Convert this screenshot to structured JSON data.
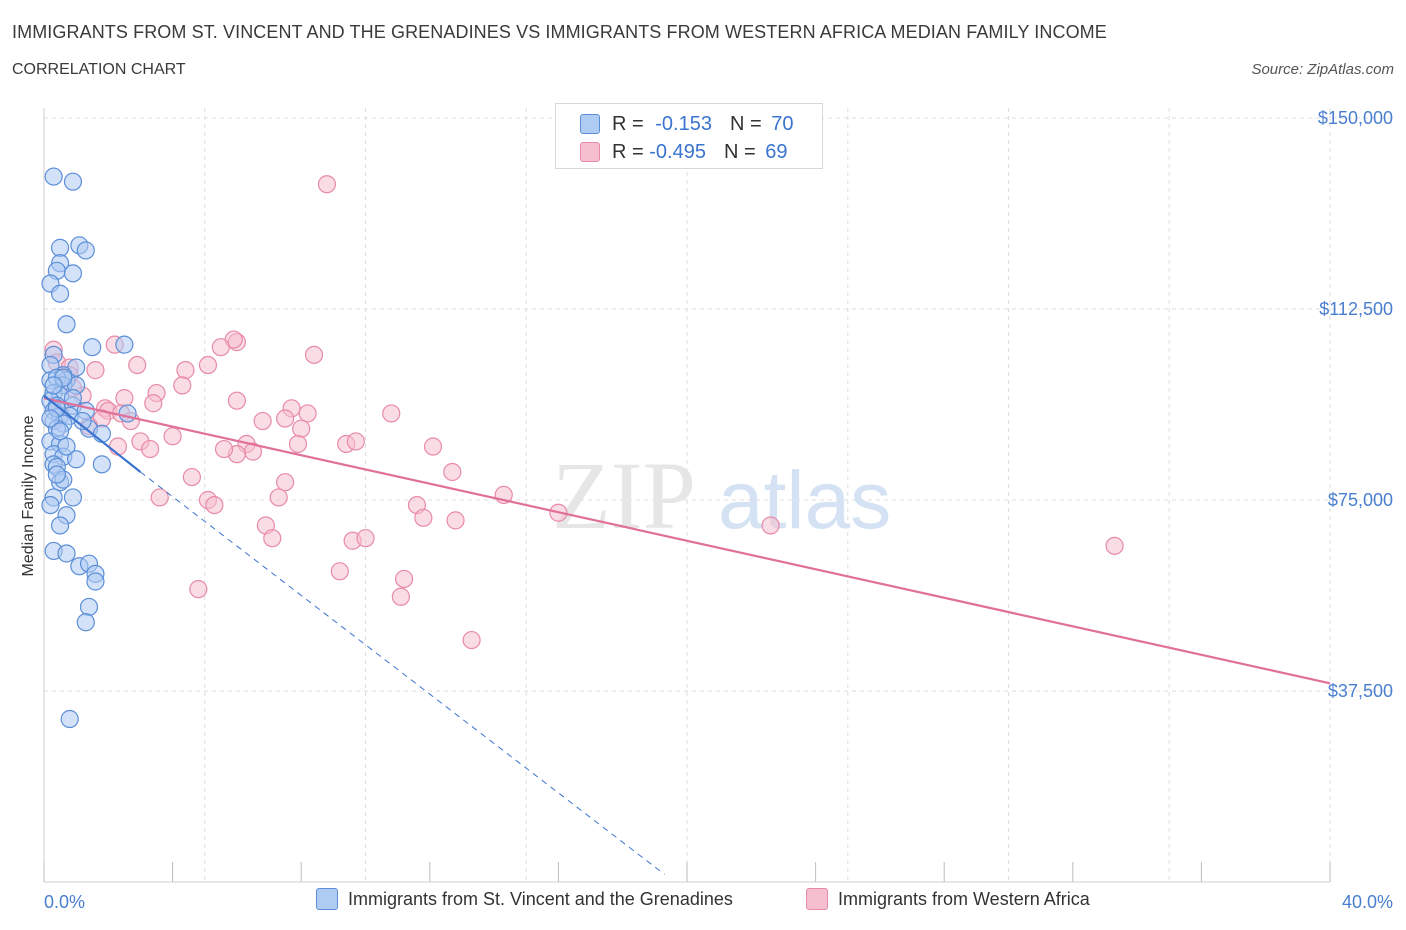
{
  "header": {
    "title": "IMMIGRANTS FROM ST. VINCENT AND THE GRENADINES VS IMMIGRANTS FROM WESTERN AFRICA MEDIAN FAMILY INCOME",
    "subtitle": "CORRELATION CHART",
    "source": "Source: ZipAtlas.com"
  },
  "legend": {
    "rows": [
      {
        "r_label": "R = ",
        "r_value": "-0.153",
        "n_label": "N = ",
        "n_value": "70"
      },
      {
        "r_label": "R = ",
        "r_value": "-0.495",
        "n_label": "N = ",
        "n_value": "69"
      }
    ]
  },
  "bottom_legend": {
    "series_a": "Immigrants from St. Vincent and the Grenadines",
    "series_b": "Immigrants from Western Africa"
  },
  "watermark": {
    "zip": "ZIP",
    "atlas": "atlas"
  },
  "colors": {
    "blue_fill": "#aecbf2",
    "blue_stroke": "#5b8fd8",
    "blue_line": "#3b73d0",
    "pink_fill": "#f6bfd0",
    "pink_stroke": "#e88aa8",
    "pink_line": "#e0709a",
    "tick_text": "#4a7fd0",
    "grid": "#dddddd"
  },
  "chart_data": {
    "type": "scatter",
    "title": "IMMIGRANTS FROM ST. VINCENT AND THE GRENADINES VS IMMIGRANTS FROM WESTERN AFRICA MEDIAN FAMILY INCOME",
    "xlabel": "",
    "ylabel": "Median Family Income",
    "xlim": [
      0,
      40
    ],
    "ylim": [
      0,
      150000
    ],
    "x_tick_labels": [
      "0.0%",
      "40.0%"
    ],
    "y_ticks": [
      {
        "value": 150000,
        "label": "$150,000"
      },
      {
        "value": 112500,
        "label": "$112,500"
      },
      {
        "value": 75000,
        "label": "$75,000"
      },
      {
        "value": 37500,
        "label": "$37,500"
      }
    ],
    "grid": true,
    "legend_position": "top-center",
    "series": [
      {
        "name": "Immigrants from St. Vincent and the Grenadines",
        "color": "#5b8fd8",
        "points": [
          [
            0.3,
            138500
          ],
          [
            0.9,
            137500
          ],
          [
            0.5,
            124500
          ],
          [
            1.1,
            125000
          ],
          [
            1.3,
            124000
          ],
          [
            0.5,
            121500
          ],
          [
            0.4,
            120000
          ],
          [
            0.9,
            119500
          ],
          [
            0.2,
            117500
          ],
          [
            0.5,
            115500
          ],
          [
            0.7,
            109500
          ],
          [
            1.5,
            105000
          ],
          [
            2.5,
            105500
          ],
          [
            0.3,
            103500
          ],
          [
            1.0,
            101000
          ],
          [
            0.2,
            101500
          ],
          [
            0.6,
            99500
          ],
          [
            0.2,
            98500
          ],
          [
            0.7,
            98500
          ],
          [
            0.4,
            99000
          ],
          [
            0.6,
            97500
          ],
          [
            1.0,
            97500
          ],
          [
            0.3,
            96000
          ],
          [
            0.5,
            95500
          ],
          [
            0.2,
            94500
          ],
          [
            0.4,
            93500
          ],
          [
            0.9,
            93500
          ],
          [
            0.3,
            92500
          ],
          [
            1.3,
            92500
          ],
          [
            2.6,
            92000
          ],
          [
            0.5,
            91500
          ],
          [
            0.3,
            90500
          ],
          [
            0.8,
            91500
          ],
          [
            0.6,
            90000
          ],
          [
            0.4,
            89000
          ],
          [
            1.4,
            89000
          ],
          [
            1.8,
            88000
          ],
          [
            0.2,
            86500
          ],
          [
            0.5,
            86000
          ],
          [
            0.3,
            84000
          ],
          [
            0.6,
            83500
          ],
          [
            1.0,
            83000
          ],
          [
            0.3,
            82000
          ],
          [
            0.4,
            81500
          ],
          [
            1.8,
            82000
          ],
          [
            0.5,
            78500
          ],
          [
            0.6,
            79000
          ],
          [
            0.9,
            75500
          ],
          [
            0.3,
            75500
          ],
          [
            0.2,
            74000
          ],
          [
            0.7,
            72000
          ],
          [
            0.5,
            70000
          ],
          [
            0.3,
            65000
          ],
          [
            0.7,
            64500
          ],
          [
            1.1,
            62000
          ],
          [
            1.4,
            62500
          ],
          [
            1.6,
            60500
          ],
          [
            1.6,
            59000
          ],
          [
            1.4,
            54000
          ],
          [
            1.3,
            51000
          ],
          [
            0.8,
            32000
          ],
          [
            0.6,
            99000
          ],
          [
            0.4,
            93000
          ],
          [
            0.2,
            91000
          ],
          [
            0.5,
            88500
          ],
          [
            0.3,
            97500
          ],
          [
            0.9,
            95000
          ],
          [
            1.2,
            90500
          ],
          [
            0.7,
            85500
          ],
          [
            0.4,
            80000
          ]
        ],
        "trend": {
          "x": [
            0,
            3.0
          ],
          "y": [
            95500,
            80500
          ]
        },
        "trend_extrapolated": {
          "x": [
            3.0,
            19.3
          ],
          "y": [
            80500,
            1500
          ]
        }
      },
      {
        "name": "Immigrants from Western Africa",
        "color": "#e88aa8",
        "points": [
          [
            8.8,
            137000
          ],
          [
            6.0,
            106000
          ],
          [
            5.9,
            106500
          ],
          [
            5.5,
            105000
          ],
          [
            8.4,
            103500
          ],
          [
            2.2,
            105500
          ],
          [
            0.3,
            104500
          ],
          [
            0.4,
            102000
          ],
          [
            0.8,
            101000
          ],
          [
            1.6,
            100500
          ],
          [
            2.9,
            101500
          ],
          [
            4.4,
            100500
          ],
          [
            5.1,
            101500
          ],
          [
            4.3,
            97500
          ],
          [
            3.5,
            96000
          ],
          [
            2.5,
            95000
          ],
          [
            3.4,
            94000
          ],
          [
            0.8,
            99500
          ],
          [
            1.2,
            95500
          ],
          [
            1.9,
            93000
          ],
          [
            0.5,
            93000
          ],
          [
            2.0,
            92500
          ],
          [
            2.4,
            92000
          ],
          [
            1.8,
            91000
          ],
          [
            6.0,
            94500
          ],
          [
            7.7,
            93000
          ],
          [
            8.2,
            92000
          ],
          [
            7.5,
            91000
          ],
          [
            6.8,
            90500
          ],
          [
            10.8,
            92000
          ],
          [
            8.0,
            89000
          ],
          [
            4.0,
            87500
          ],
          [
            3.0,
            86500
          ],
          [
            2.3,
            85500
          ],
          [
            3.3,
            85000
          ],
          [
            6.3,
            86000
          ],
          [
            9.4,
            86000
          ],
          [
            9.7,
            86500
          ],
          [
            7.9,
            86000
          ],
          [
            6.5,
            84500
          ],
          [
            6.0,
            84000
          ],
          [
            12.1,
            85500
          ],
          [
            12.7,
            80500
          ],
          [
            4.6,
            79500
          ],
          [
            7.5,
            78500
          ],
          [
            14.3,
            76000
          ],
          [
            7.3,
            75500
          ],
          [
            3.6,
            75500
          ],
          [
            5.1,
            75000
          ],
          [
            5.3,
            74000
          ],
          [
            11.6,
            74000
          ],
          [
            16.0,
            72500
          ],
          [
            11.8,
            71500
          ],
          [
            12.8,
            71000
          ],
          [
            6.9,
            70000
          ],
          [
            22.6,
            70000
          ],
          [
            7.1,
            67500
          ],
          [
            9.6,
            67000
          ],
          [
            10.0,
            67500
          ],
          [
            33.3,
            66000
          ],
          [
            9.2,
            61000
          ],
          [
            11.2,
            59500
          ],
          [
            11.1,
            56000
          ],
          [
            4.8,
            57500
          ],
          [
            13.3,
            47500
          ],
          [
            1.4,
            89500
          ],
          [
            0.9,
            97000
          ],
          [
            2.7,
            90500
          ],
          [
            5.6,
            85000
          ]
        ],
        "trend": {
          "x": [
            0,
            40
          ],
          "y": [
            95000,
            39000
          ]
        }
      }
    ]
  }
}
